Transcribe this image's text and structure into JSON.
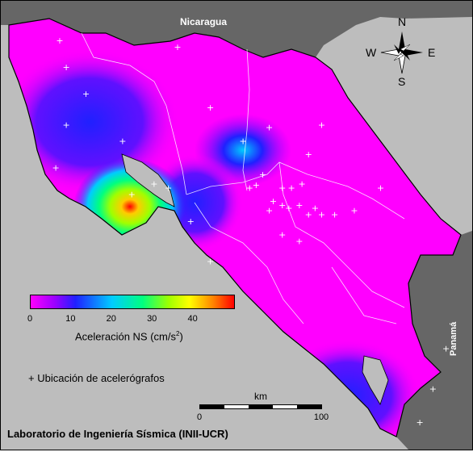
{
  "map": {
    "credit": "Laboratorio de Ingeniería Sísmica (INII-UCR)",
    "countries": {
      "north": "Nicaragua",
      "south": "Panamá"
    },
    "compass": {
      "n": "N",
      "s": "S",
      "w": "W",
      "e": "E"
    },
    "colors": {
      "sea": "#bdbdbd",
      "neighbor_land": "#666666",
      "low": "#ff00ff",
      "mid": "#2020ff",
      "high": "#ff0000"
    },
    "legend": {
      "title": "Aceleración NS (cm/s",
      "title_sup": "2",
      "title_end": ")",
      "ticks": [
        "0",
        "10",
        "20",
        "30",
        "40"
      ],
      "range": [
        0,
        50
      ]
    },
    "station_legend": "+ Ubicación de acelerógrafos",
    "scale": {
      "unit": "km",
      "start": "0",
      "end": "100"
    },
    "stations": [
      [
        -85.55,
        11.05
      ],
      [
        -85.5,
        10.85
      ],
      [
        -85.35,
        10.65
      ],
      [
        -85.5,
        10.42
      ],
      [
        -85.58,
        10.1
      ],
      [
        -85.07,
        10.3
      ],
      [
        -85.0,
        9.9
      ],
      [
        -84.83,
        9.98
      ],
      [
        -84.72,
        9.95
      ],
      [
        -84.4,
        10.55
      ],
      [
        -84.65,
        11.0
      ],
      [
        -84.15,
        10.3
      ],
      [
        -83.95,
        10.4
      ],
      [
        -84.0,
        10.05
      ],
      [
        -83.55,
        10.42
      ],
      [
        -83.65,
        10.2
      ],
      [
        -84.05,
        9.97
      ],
      [
        -84.1,
        9.95
      ],
      [
        -83.85,
        9.95
      ],
      [
        -83.78,
        9.95
      ],
      [
        -83.92,
        9.85
      ],
      [
        -83.95,
        9.78
      ],
      [
        -83.85,
        9.82
      ],
      [
        -83.8,
        9.8
      ],
      [
        -83.72,
        9.82
      ],
      [
        -83.6,
        9.8
      ],
      [
        -83.65,
        9.75
      ],
      [
        -83.55,
        9.75
      ],
      [
        -83.45,
        9.75
      ],
      [
        -83.3,
        9.78
      ],
      [
        -83.85,
        9.6
      ],
      [
        -83.72,
        9.55
      ],
      [
        -83.7,
        9.98
      ],
      [
        -83.1,
        9.95
      ],
      [
        -82.6,
        8.75
      ],
      [
        -82.7,
        8.45
      ],
      [
        -82.8,
        8.2
      ],
      [
        -84.55,
        9.7
      ],
      [
        -84.4,
        9.4
      ]
    ]
  }
}
